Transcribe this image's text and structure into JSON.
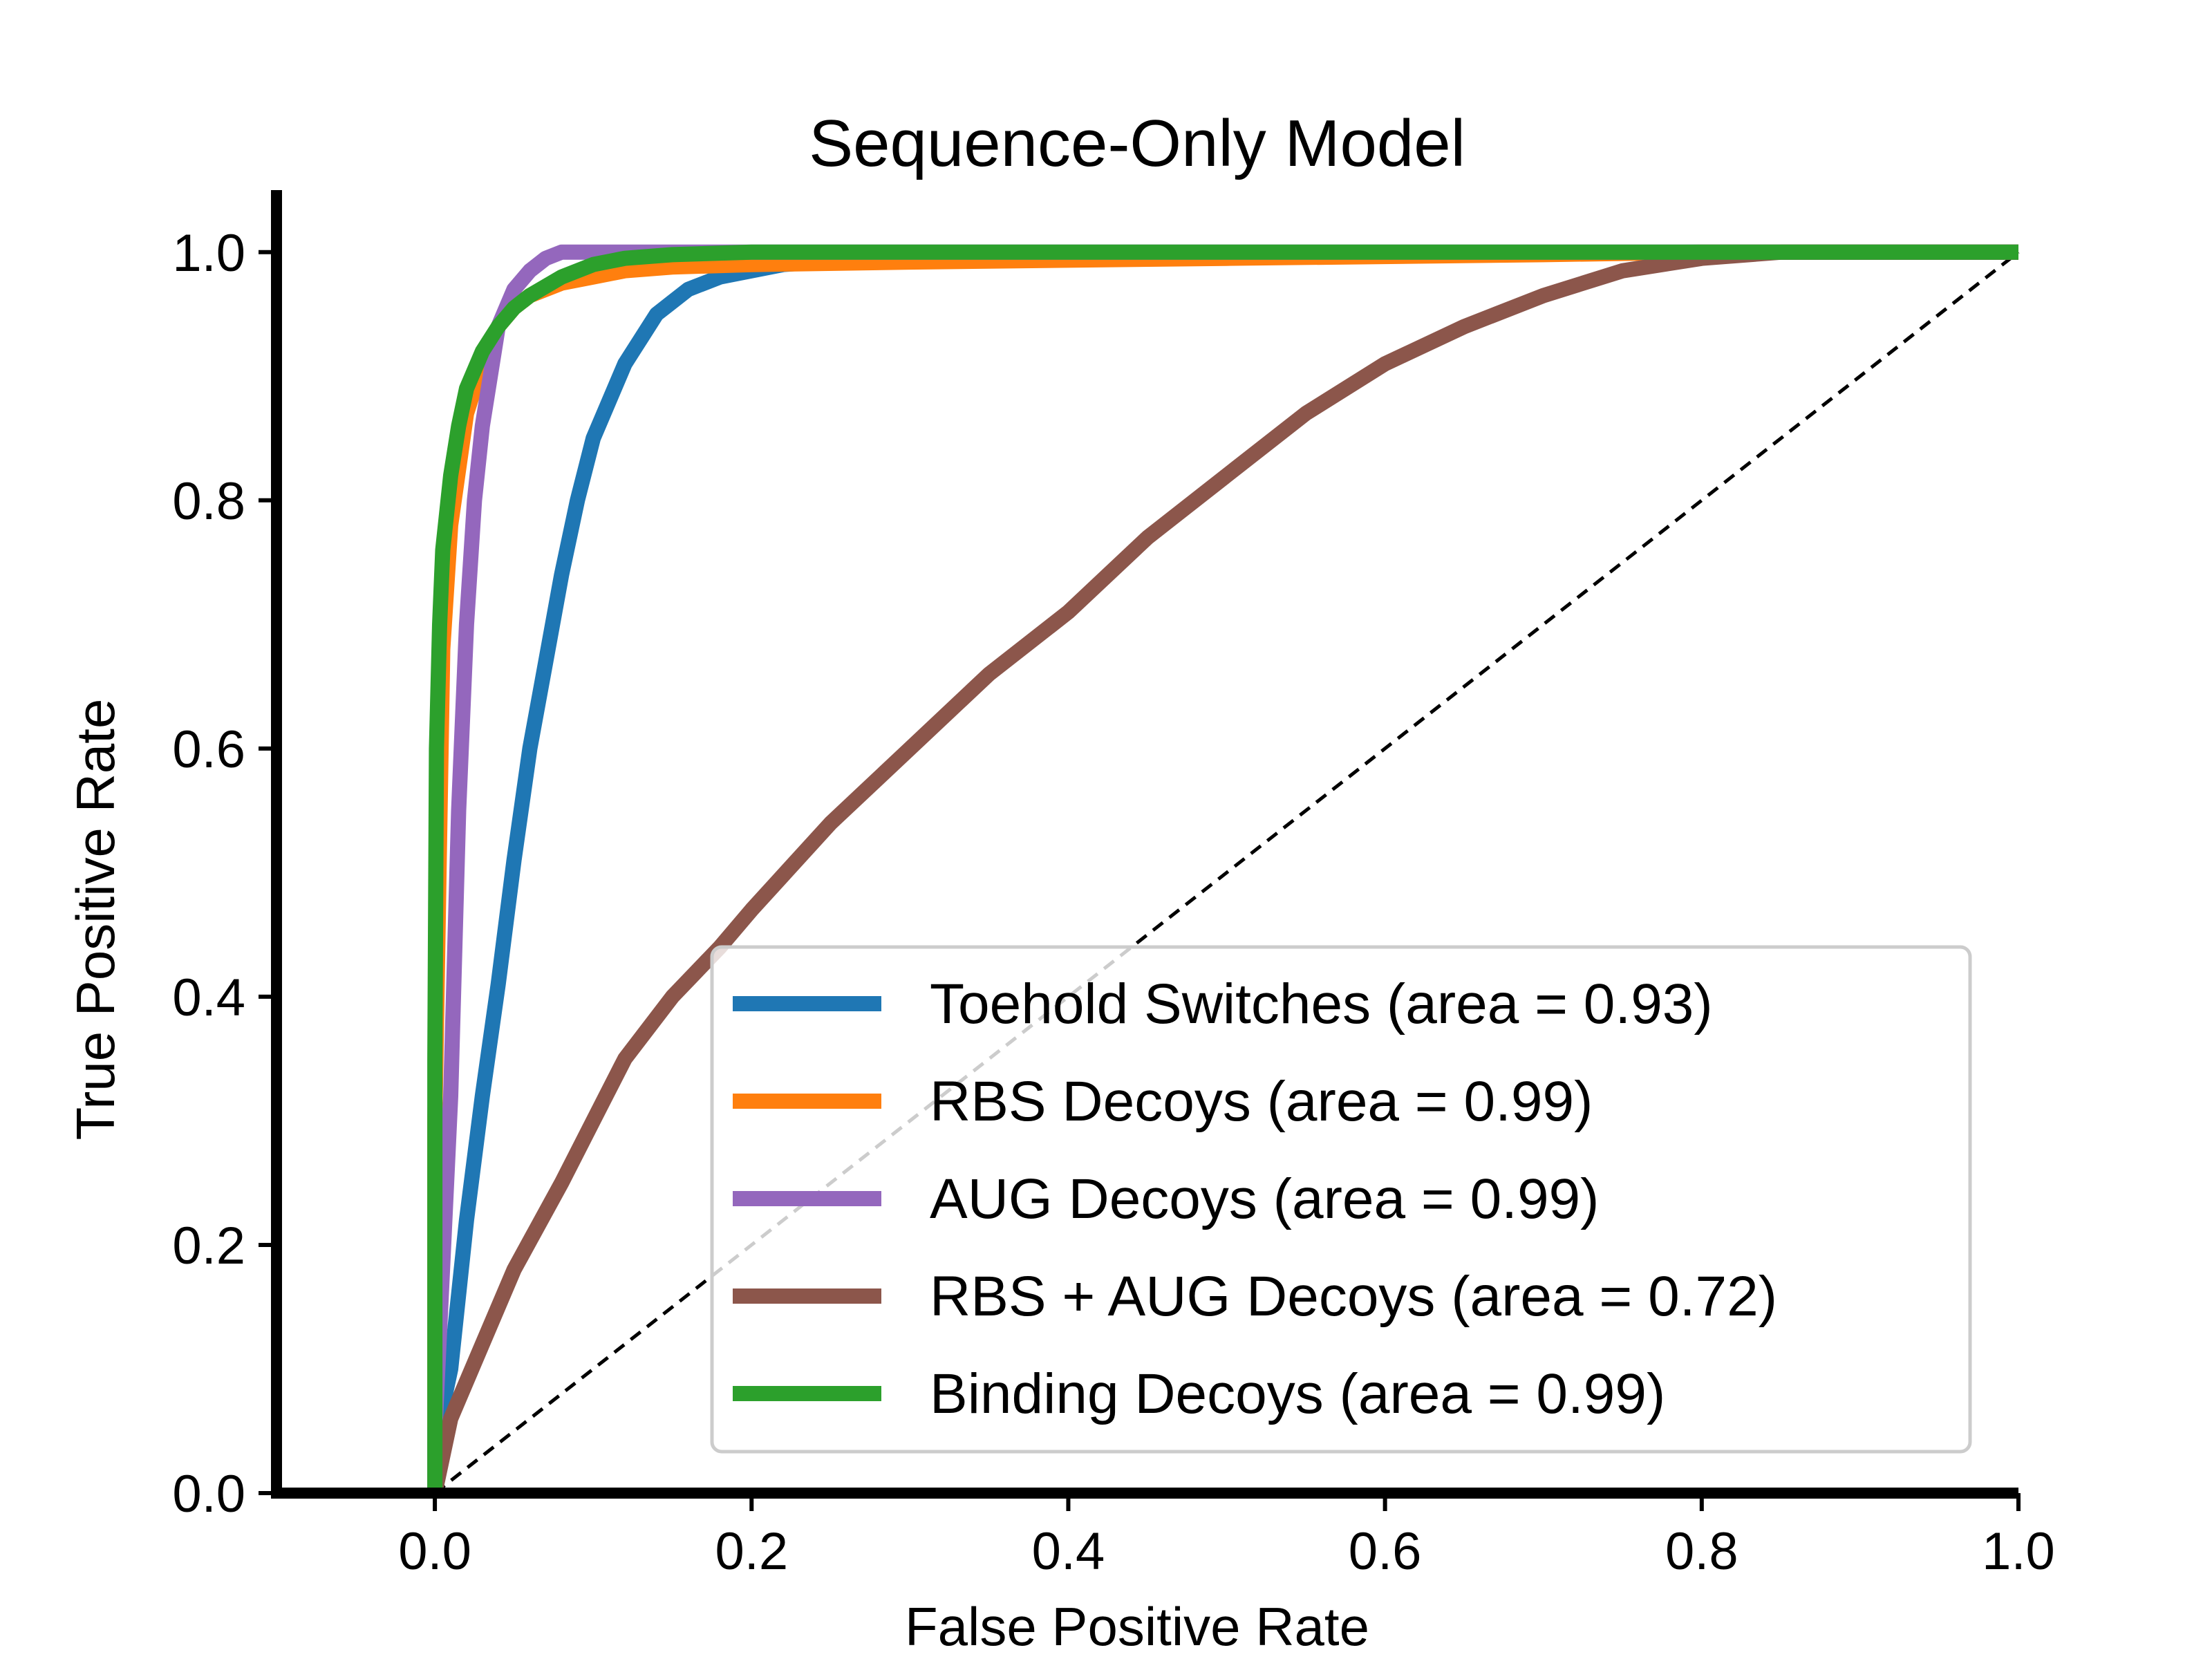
{
  "chart_data": {
    "type": "line",
    "title": "Sequence-Only Model",
    "xlabel": "False Positive Rate",
    "ylabel": "True Positive Rate",
    "xlim": [
      -0.1,
      1.0
    ],
    "ylim": [
      0.0,
      1.05
    ],
    "xticks": [
      "0.0",
      "0.2",
      "0.4",
      "0.6",
      "0.8",
      "1.0"
    ],
    "yticks": [
      "0.0",
      "0.2",
      "0.4",
      "0.6",
      "0.8",
      "1.0"
    ],
    "grid": false,
    "legend_position": "lower-right",
    "diagonal_reference": {
      "style": "dashed",
      "color": "#000000",
      "x": [
        0,
        1
      ],
      "y": [
        0,
        1
      ]
    },
    "series": [
      {
        "name": "Toehold Switches (area = 0.93)",
        "color": "#1f77b4",
        "x": [
          0.0,
          0.0,
          0.01,
          0.02,
          0.03,
          0.04,
          0.05,
          0.06,
          0.07,
          0.08,
          0.09,
          0.1,
          0.11,
          0.12,
          0.13,
          0.14,
          0.15,
          0.16,
          0.18,
          0.2,
          0.22,
          0.25,
          0.3,
          0.4,
          0.6,
          0.8,
          1.0
        ],
        "y": [
          0.0,
          0.04,
          0.1,
          0.22,
          0.32,
          0.41,
          0.51,
          0.6,
          0.67,
          0.74,
          0.8,
          0.85,
          0.88,
          0.91,
          0.93,
          0.95,
          0.96,
          0.97,
          0.98,
          0.985,
          0.99,
          0.993,
          0.995,
          0.997,
          0.998,
          1.0,
          1.0
        ]
      },
      {
        "name": "RBS Decoys (area = 0.99)",
        "color": "#ff7f0e",
        "x": [
          0.0,
          0.0,
          0.005,
          0.01,
          0.02,
          0.03,
          0.04,
          0.05,
          0.06,
          0.08,
          0.1,
          0.12,
          0.15,
          0.2,
          0.3,
          0.5,
          0.7,
          0.8,
          1.0
        ],
        "y": [
          0.0,
          0.3,
          0.68,
          0.78,
          0.87,
          0.91,
          0.94,
          0.955,
          0.965,
          0.975,
          0.98,
          0.985,
          0.988,
          0.99,
          0.992,
          0.995,
          0.998,
          1.0,
          1.0
        ]
      },
      {
        "name": "AUG Decoys (area = 0.99)",
        "color": "#9467bd",
        "x": [
          0.0,
          0.0,
          0.01,
          0.015,
          0.02,
          0.025,
          0.03,
          0.035,
          0.04,
          0.05,
          0.06,
          0.07,
          0.08,
          0.09,
          0.1,
          0.12,
          0.15,
          0.2,
          0.5,
          1.0
        ],
        "y": [
          0.0,
          0.05,
          0.32,
          0.55,
          0.7,
          0.8,
          0.86,
          0.9,
          0.94,
          0.97,
          0.985,
          0.995,
          1.0,
          1.0,
          1.0,
          1.0,
          1.0,
          1.0,
          1.0,
          1.0
        ]
      },
      {
        "name": "RBS + AUG Decoys (area = 0.72)",
        "color": "#8c564b",
        "x": [
          0.0,
          0.01,
          0.03,
          0.05,
          0.08,
          0.1,
          0.12,
          0.15,
          0.18,
          0.2,
          0.25,
          0.3,
          0.35,
          0.4,
          0.45,
          0.5,
          0.55,
          0.6,
          0.65,
          0.7,
          0.75,
          0.8,
          0.85,
          0.9,
          1.0
        ],
        "y": [
          0.0,
          0.06,
          0.12,
          0.18,
          0.25,
          0.3,
          0.35,
          0.4,
          0.44,
          0.47,
          0.54,
          0.6,
          0.66,
          0.71,
          0.77,
          0.82,
          0.87,
          0.91,
          0.94,
          0.965,
          0.985,
          0.995,
          1.0,
          1.0,
          1.0
        ]
      },
      {
        "name": "Binding Decoys (area = 0.99)",
        "color": "#2ca02c",
        "x": [
          0.0,
          0.0,
          0.001,
          0.003,
          0.005,
          0.01,
          0.015,
          0.02,
          0.03,
          0.04,
          0.05,
          0.06,
          0.08,
          0.1,
          0.12,
          0.15,
          0.2,
          0.3,
          0.5,
          1.0
        ],
        "y": [
          0.0,
          0.35,
          0.6,
          0.7,
          0.76,
          0.82,
          0.86,
          0.89,
          0.92,
          0.94,
          0.955,
          0.965,
          0.98,
          0.99,
          0.995,
          0.998,
          1.0,
          1.0,
          1.0,
          1.0
        ]
      }
    ]
  }
}
